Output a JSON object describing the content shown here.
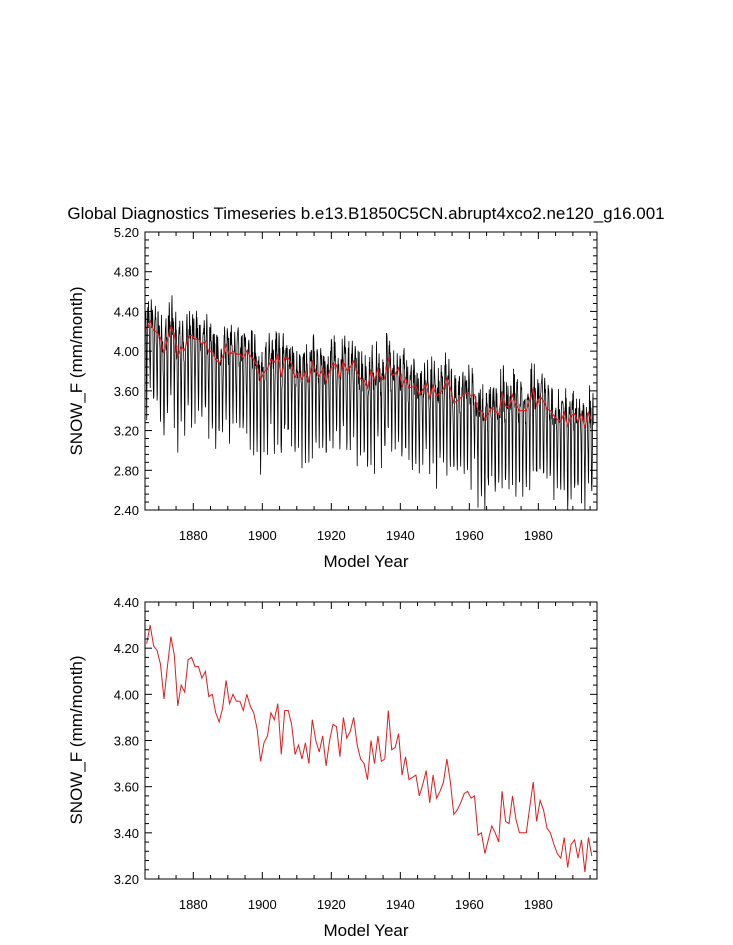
{
  "chart_data": [
    {
      "type": "line",
      "title": "Global Diagnostics Timeseries b.e13.B1850C5CN.abrupt4xco2.ne120_g16.001",
      "xlabel": "Model Year",
      "ylabel": "SNOW_F (mm/month)",
      "xlim": [
        1866,
        1997
      ],
      "ylim": [
        2.4,
        5.2
      ],
      "xticks": [
        1880,
        1900,
        1920,
        1940,
        1960,
        1980
      ],
      "xtick_labels": [
        "1880",
        "1900",
        "1920",
        "1940",
        "1960",
        "1980"
      ],
      "yticks": [
        2.4,
        2.8,
        3.2,
        3.6,
        4.0,
        4.4,
        4.8,
        5.2
      ],
      "ytick_labels": [
        "2.40",
        "2.80",
        "3.20",
        "3.60",
        "4.00",
        "4.40",
        "4.80",
        "5.20"
      ],
      "series": [
        {
          "name": "monthly",
          "color": "#000000",
          "monthly_seasonal_shape": [
            0.1,
            0.14,
            0.06,
            0.0,
            -0.18,
            -0.55,
            -0.8,
            -0.55,
            -0.1,
            0.08,
            0.14,
            0.12
          ],
          "annual_mean_source": "annual"
        },
        {
          "name": "annual",
          "color": "#e41a1c",
          "annual_mean_source": "annual"
        }
      ]
    },
    {
      "type": "line",
      "title": "",
      "xlabel": "Model Year",
      "ylabel": "SNOW_F (mm/month)",
      "xlim": [
        1866,
        1997
      ],
      "ylim": [
        3.2,
        4.4
      ],
      "xticks": [
        1880,
        1900,
        1920,
        1940,
        1960,
        1980
      ],
      "xtick_labels": [
        "1880",
        "1900",
        "1920",
        "1940",
        "1960",
        "1980"
      ],
      "yticks": [
        3.2,
        3.4,
        3.6,
        3.8,
        4.0,
        4.2,
        4.4
      ],
      "ytick_labels": [
        "3.20",
        "3.40",
        "3.60",
        "3.80",
        "4.00",
        "4.20",
        "4.40"
      ],
      "series": [
        {
          "name": "annual",
          "color": "#e41a1c",
          "x_start": 1866,
          "x_end": 1995,
          "values": [
            4.22,
            4.3,
            4.21,
            4.19,
            4.13,
            3.98,
            4.12,
            4.25,
            4.17,
            3.95,
            4.04,
            4.01,
            4.15,
            4.16,
            4.12,
            4.12,
            4.07,
            4.1,
            3.99,
            4.0,
            3.92,
            3.88,
            3.94,
            4.06,
            3.96,
            4.0,
            3.97,
            3.97,
            3.93,
            4.0,
            3.95,
            3.92,
            3.85,
            3.71,
            3.79,
            3.82,
            3.92,
            3.89,
            3.96,
            3.74,
            3.93,
            3.93,
            3.87,
            3.74,
            3.78,
            3.72,
            3.79,
            3.7,
            3.89,
            3.8,
            3.75,
            3.82,
            3.69,
            3.8,
            3.87,
            3.86,
            3.73,
            3.9,
            3.81,
            3.84,
            3.9,
            3.78,
            3.72,
            3.7,
            3.63,
            3.8,
            3.7,
            3.82,
            3.71,
            3.72,
            3.93,
            3.76,
            3.77,
            3.83,
            3.65,
            3.73,
            3.63,
            3.64,
            3.65,
            3.56,
            3.61,
            3.67,
            3.53,
            3.65,
            3.55,
            3.58,
            3.62,
            3.72,
            3.62,
            3.48,
            3.5,
            3.53,
            3.57,
            3.58,
            3.55,
            3.56,
            3.39,
            3.4,
            3.31,
            3.37,
            3.43,
            3.4,
            3.36,
            3.58,
            3.45,
            3.44,
            3.56,
            3.46,
            3.4,
            3.4,
            3.4,
            3.51,
            3.62,
            3.45,
            3.54,
            3.5,
            3.42,
            3.4,
            3.35,
            3.31,
            3.29,
            3.38,
            3.25,
            3.35,
            3.37,
            3.29,
            3.37,
            3.23,
            3.38,
            3.3
          ]
        }
      ]
    }
  ]
}
